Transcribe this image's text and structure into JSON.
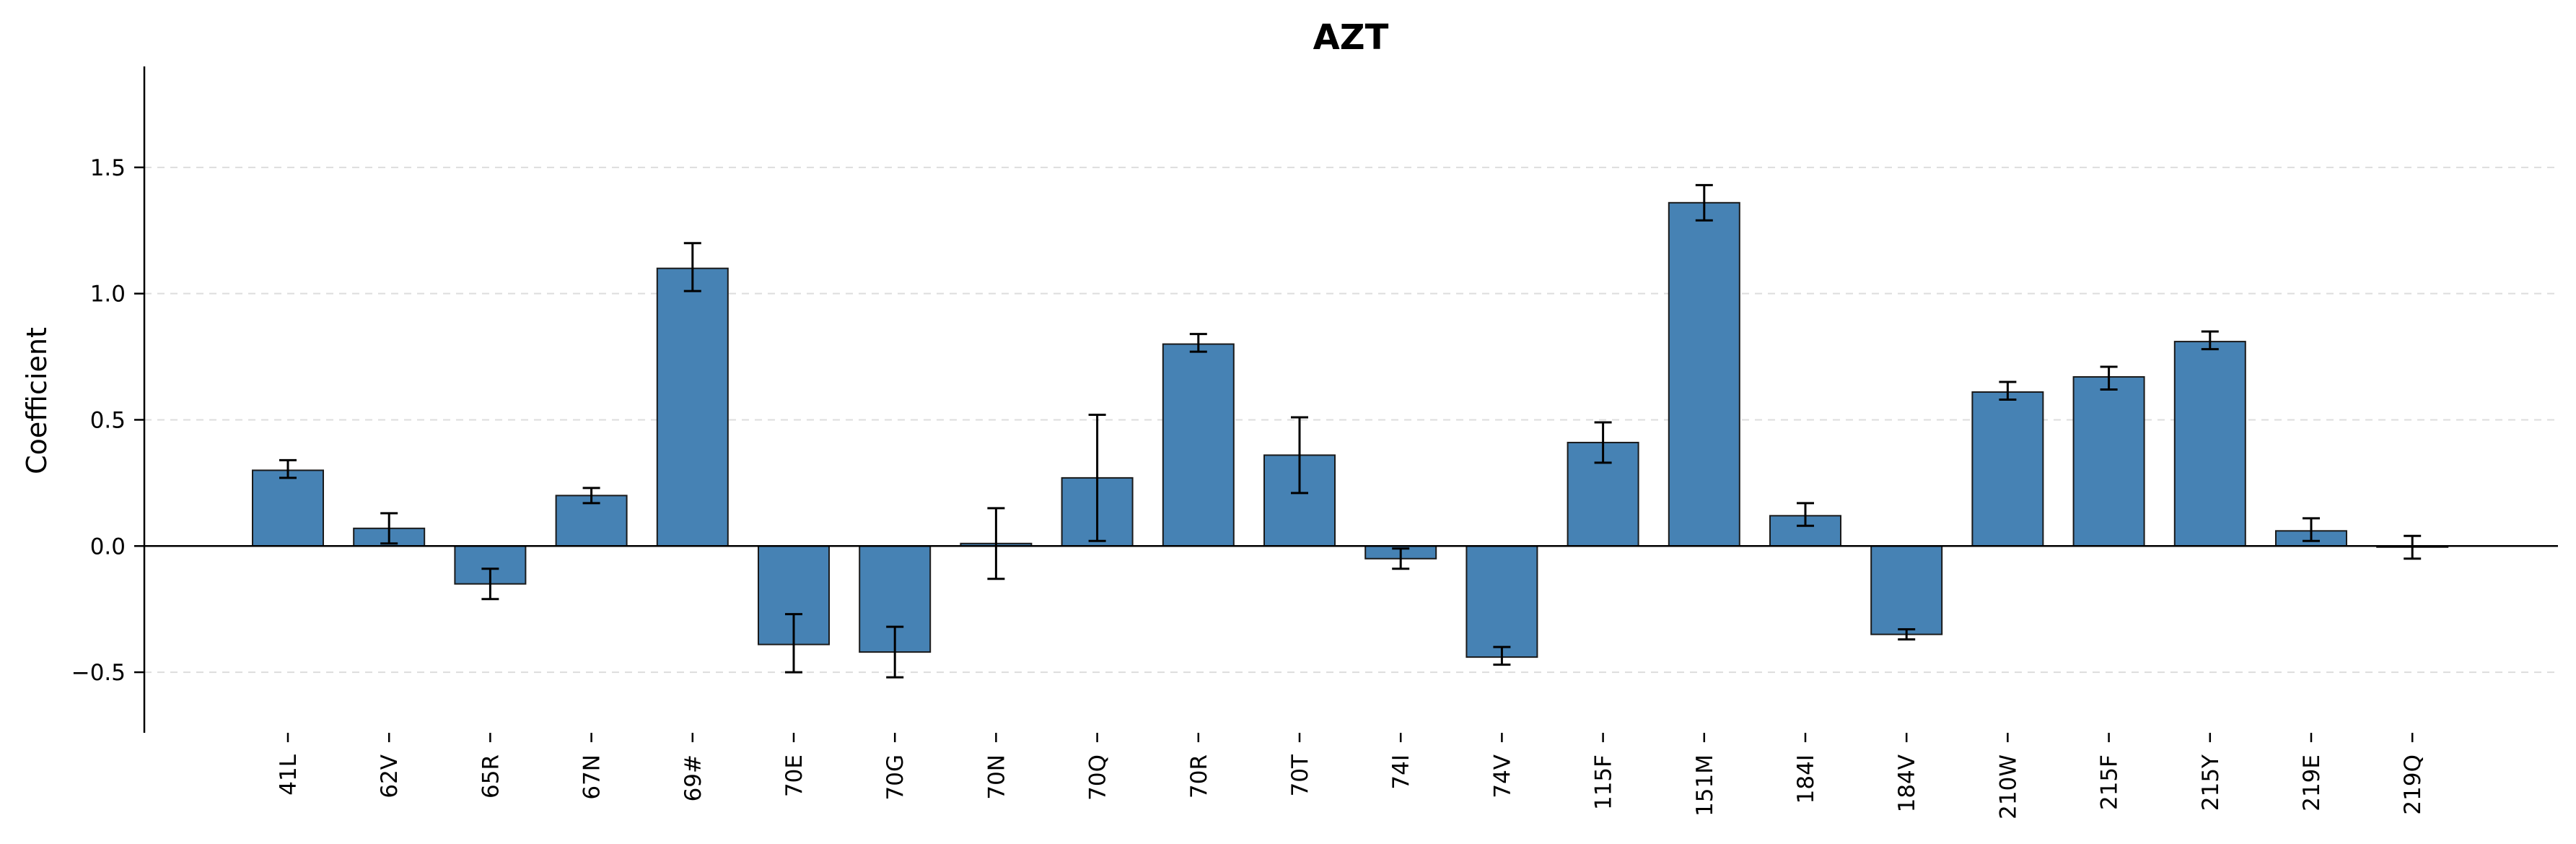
{
  "chart_data": {
    "type": "bar",
    "title": "AZT",
    "xlabel": "",
    "ylabel": "Coefficient",
    "ylim": [
      -0.74,
      1.9
    ],
    "yticks": [
      -0.5,
      0.0,
      0.5,
      1.0,
      1.5
    ],
    "ytick_labels": [
      "−0.5",
      "0.0",
      "0.5",
      "1.0",
      "1.5"
    ],
    "grid": "horizontal dashed",
    "colors": {
      "bar": "#4682b4",
      "bar_edge": "#1a1a1a",
      "grid": "#dddddd",
      "axis": "#000000"
    },
    "categories": [
      "41L",
      "62V",
      "65R",
      "67N",
      "69#",
      "70E",
      "70G",
      "70N",
      "70Q",
      "70R",
      "70T",
      "74I",
      "74V",
      "115F",
      "151M",
      "184I",
      "184V",
      "210W",
      "215F",
      "215Y",
      "219E",
      "219Q"
    ],
    "values": [
      0.3,
      0.07,
      -0.15,
      0.2,
      1.1,
      -0.39,
      -0.42,
      0.01,
      0.27,
      0.8,
      0.36,
      -0.05,
      -0.44,
      0.41,
      1.36,
      0.12,
      -0.35,
      0.61,
      0.67,
      0.81,
      0.06,
      0.0
    ],
    "err_low": [
      0.27,
      0.01,
      -0.21,
      0.17,
      1.01,
      -0.5,
      -0.52,
      -0.13,
      0.02,
      0.77,
      0.21,
      -0.09,
      -0.47,
      0.33,
      1.29,
      0.08,
      -0.37,
      0.58,
      0.62,
      0.78,
      0.02,
      -0.05
    ],
    "err_high": [
      0.34,
      0.13,
      -0.09,
      0.23,
      1.2,
      -0.27,
      -0.32,
      0.15,
      0.52,
      0.84,
      0.51,
      -0.01,
      -0.4,
      0.49,
      1.43,
      0.17,
      -0.33,
      0.65,
      0.71,
      0.85,
      0.11,
      0.04
    ]
  }
}
